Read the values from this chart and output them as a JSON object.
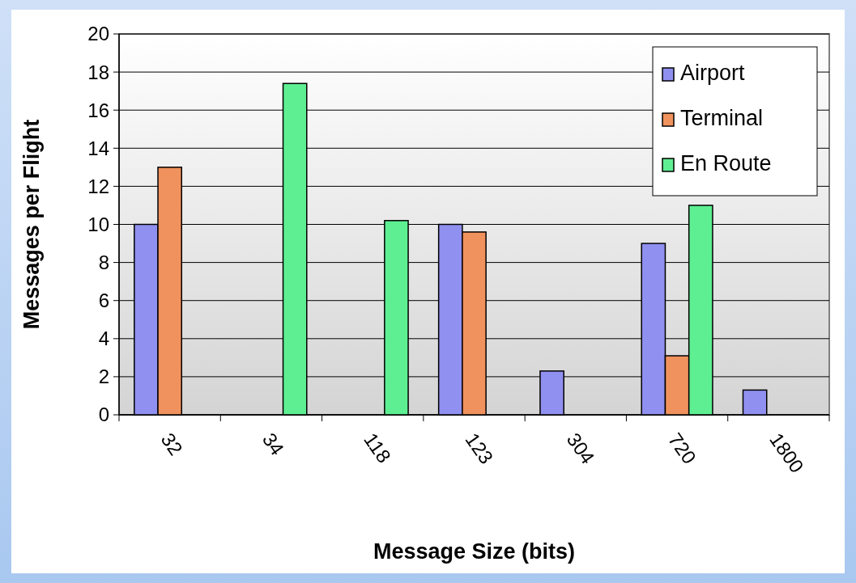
{
  "chart_data": {
    "type": "bar",
    "xlabel": "Message Size (bits)",
    "ylabel": "Messages per Flight",
    "categories": [
      "32",
      "34",
      "118",
      "123",
      "304",
      "720",
      "1800"
    ],
    "series": [
      {
        "name": "Airport",
        "color": "#9090f0",
        "values": [
          10,
          null,
          null,
          10,
          2.3,
          9,
          1.3
        ]
      },
      {
        "name": "Terminal",
        "color": "#f0925e",
        "values": [
          13,
          null,
          null,
          9.6,
          null,
          3.1,
          null
        ]
      },
      {
        "name": "En Route",
        "color": "#5eef92",
        "values": [
          null,
          17.4,
          10.2,
          null,
          null,
          11,
          null
        ]
      }
    ],
    "ylim": [
      0,
      20
    ],
    "yticks": [
      0,
      2,
      4,
      6,
      8,
      10,
      12,
      14,
      16,
      18,
      20
    ],
    "grid": "y",
    "legend": "top right"
  }
}
